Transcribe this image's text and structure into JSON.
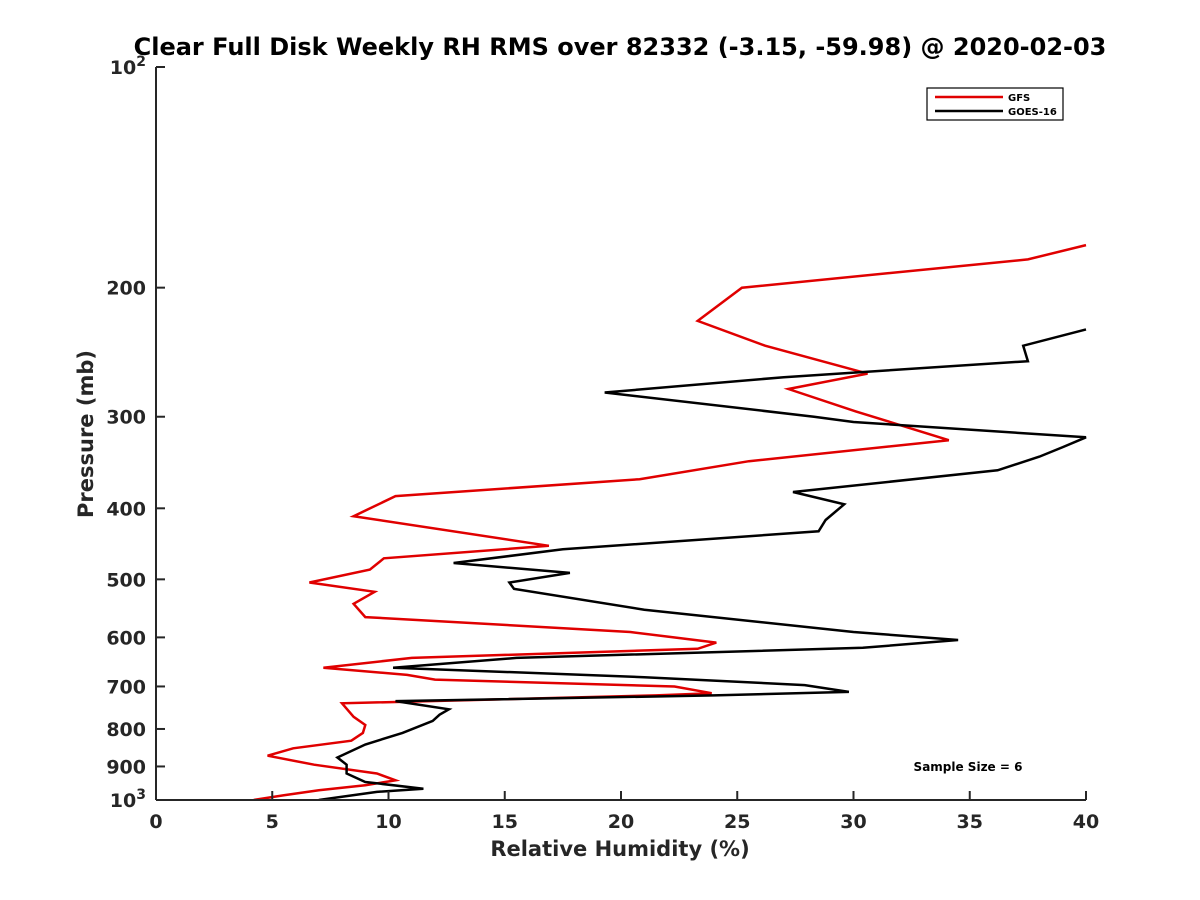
{
  "chart_data": {
    "type": "line",
    "title": "Clear Full Disk Weekly RH RMS over 82332 (-3.15, -59.98) @ 2020-02-03",
    "xlabel": "Relative Humidity (%)",
    "ylabel": "Pressure (mb)",
    "xlim": [
      0,
      40
    ],
    "ylim": [
      100,
      1000
    ],
    "y_scale": "log",
    "y_reversed": true,
    "x_ticks": [
      "0",
      "5",
      "10",
      "15",
      "20",
      "25",
      "30",
      "35",
      "40"
    ],
    "y_ticks": [
      {
        "value": 100,
        "base": "10",
        "exp": "2"
      },
      {
        "value": 200,
        "label": "200"
      },
      {
        "value": 300,
        "label": "300"
      },
      {
        "value": 400,
        "label": "400"
      },
      {
        "value": 500,
        "label": "500"
      },
      {
        "value": 600,
        "label": "600"
      },
      {
        "value": 700,
        "label": "700"
      },
      {
        "value": 800,
        "label": "800"
      },
      {
        "value": 900,
        "label": "900"
      },
      {
        "value": 1000,
        "base": "10",
        "exp": "3"
      }
    ],
    "grid": false,
    "legend_position": "top-right",
    "annotation": "Sample Size = 6",
    "series": [
      {
        "name": "GFS",
        "color": "#e00000",
        "points": [
          [
            40,
            175
          ],
          [
            37.5,
            183
          ],
          [
            25.2,
            200
          ],
          [
            23.3,
            222
          ],
          [
            26.2,
            240
          ],
          [
            30.6,
            262
          ],
          [
            27.2,
            275
          ],
          [
            30.1,
            295
          ],
          [
            34.1,
            323
          ],
          [
            25.5,
            345
          ],
          [
            20.8,
            365
          ],
          [
            10.3,
            385
          ],
          [
            8.5,
            410
          ],
          [
            16.9,
            450
          ],
          [
            9.8,
            468
          ],
          [
            9.2,
            485
          ],
          [
            6.6,
            505
          ],
          [
            9.4,
            520
          ],
          [
            8.5,
            540
          ],
          [
            9.0,
            563
          ],
          [
            20.4,
            590
          ],
          [
            24.1,
            610
          ],
          [
            23.3,
            622
          ],
          [
            11.0,
            640
          ],
          [
            7.2,
            660
          ],
          [
            10.8,
            675
          ],
          [
            12.0,
            685
          ],
          [
            22.3,
            700
          ],
          [
            23.9,
            715
          ],
          [
            21.5,
            720
          ],
          [
            8.0,
            738
          ],
          [
            8.5,
            770
          ],
          [
            9.0,
            790
          ],
          [
            8.9,
            810
          ],
          [
            8.4,
            830
          ],
          [
            5.9,
            850
          ],
          [
            4.8,
            870
          ],
          [
            6.8,
            895
          ],
          [
            9.5,
            920
          ],
          [
            10.3,
            940
          ],
          [
            9.0,
            955
          ],
          [
            7.0,
            970
          ],
          [
            5.5,
            985
          ],
          [
            4.2,
            1000
          ]
        ]
      },
      {
        "name": "GOES-16",
        "color": "#000000",
        "points": [
          [
            40,
            228
          ],
          [
            37.3,
            240
          ],
          [
            37.5,
            252
          ],
          [
            27.0,
            265
          ],
          [
            19.3,
            278
          ],
          [
            28.3,
            300
          ],
          [
            30.0,
            305
          ],
          [
            40,
            320
          ],
          [
            39.0,
            330
          ],
          [
            38.0,
            340
          ],
          [
            36.2,
            355
          ],
          [
            27.4,
            380
          ],
          [
            29.6,
            395
          ],
          [
            28.8,
            415
          ],
          [
            28.5,
            430
          ],
          [
            17.5,
            455
          ],
          [
            12.8,
            475
          ],
          [
            17.8,
            490
          ],
          [
            15.2,
            505
          ],
          [
            15.4,
            515
          ],
          [
            21.0,
            550
          ],
          [
            30.0,
            590
          ],
          [
            34.5,
            605
          ],
          [
            30.4,
            620
          ],
          [
            15.5,
            640
          ],
          [
            10.2,
            660
          ],
          [
            21.0,
            680
          ],
          [
            27.9,
            697
          ],
          [
            29.8,
            712
          ],
          [
            24.0,
            720
          ],
          [
            10.3,
            733
          ],
          [
            12.6,
            752
          ],
          [
            12.2,
            765
          ],
          [
            11.9,
            780
          ],
          [
            10.6,
            810
          ],
          [
            9.0,
            840
          ],
          [
            7.8,
            875
          ],
          [
            8.2,
            895
          ],
          [
            8.2,
            920
          ],
          [
            9.0,
            945
          ],
          [
            11.5,
            965
          ],
          [
            9.5,
            975
          ],
          [
            7.0,
            1000
          ]
        ]
      }
    ]
  }
}
